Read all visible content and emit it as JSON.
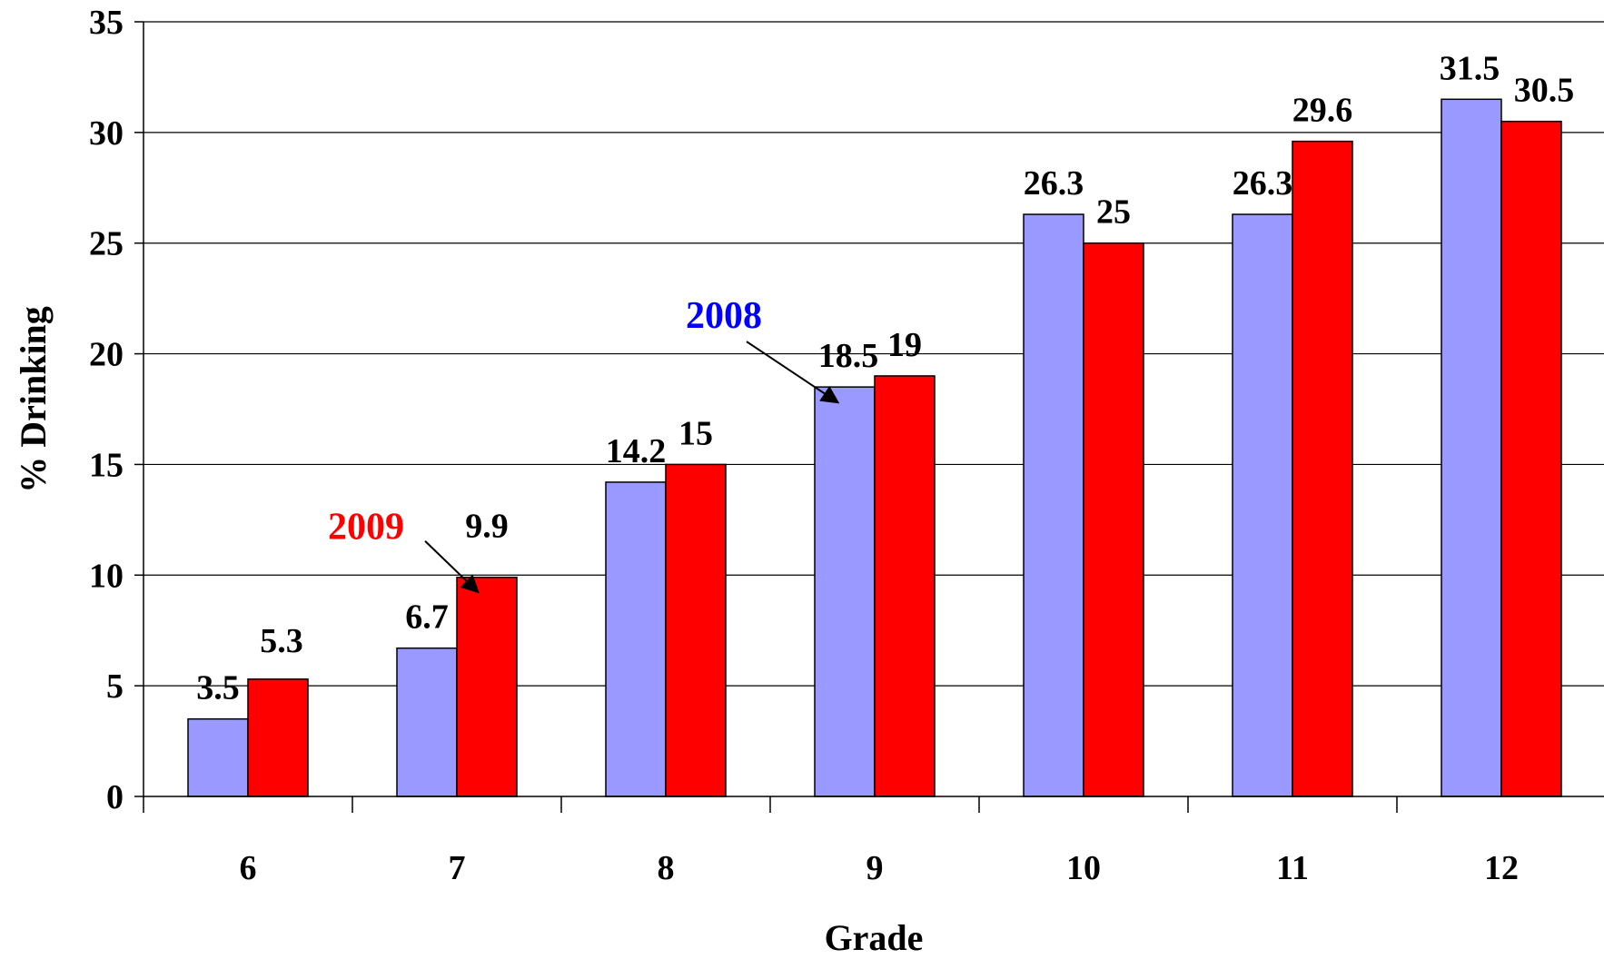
{
  "chart_data": {
    "type": "bar",
    "xlabel": "Grade",
    "ylabel": "% Drinking",
    "ylim": [
      0,
      35
    ],
    "yticks": [
      0,
      5,
      10,
      15,
      20,
      25,
      30,
      35
    ],
    "grid": true,
    "categories": [
      "6",
      "7",
      "8",
      "9",
      "10",
      "11",
      "12"
    ],
    "series": [
      {
        "name": "2008",
        "color": "#9999FF",
        "values": [
          3.5,
          6.7,
          14.2,
          18.5,
          26.3,
          26.3,
          31.5
        ],
        "labels": [
          "3.5",
          "6.7",
          "14.2",
          "18.5",
          "26.3",
          "26.3",
          "31.5"
        ]
      },
      {
        "name": "2009",
        "color": "#FF0000",
        "values": [
          5.3,
          9.9,
          15,
          19,
          25,
          29.6,
          30.5
        ],
        "labels": [
          "5.3",
          "9.9",
          "15",
          "19",
          "25",
          "29.6",
          "30.5"
        ]
      }
    ],
    "annotations": [
      {
        "text": "2008",
        "color": "#0000FF",
        "series": 0,
        "category": 3
      },
      {
        "text": "2009",
        "color": "#FF0000",
        "series": 1,
        "category": 1
      }
    ]
  }
}
